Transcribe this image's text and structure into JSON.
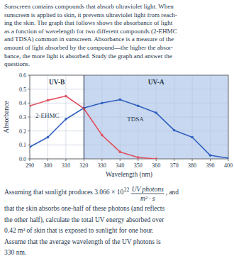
{
  "paragraph": [
    "Sunscreen contains compounds that absorb ultraviolet light. When",
    "sunscreen is applied to skin, it prevents ultraviolet light from reach-",
    "ing the skin. The graph that follows shows the absorbance of light",
    "as a function of wavelength for two different compounds (2-EHMC",
    "and TDSA) common in sunscreen. Absorbance is a measure of the",
    "amount of light absorbed by the compound—the higher the absor-",
    "bance, the more light is absorbed. Study the graph and answer the",
    "questions."
  ],
  "chart_data": {
    "type": "line",
    "x_label": "Wavelength (nm)",
    "y_label": "Absorbance",
    "xlim": [
      290,
      400
    ],
    "ylim": [
      0,
      0.6
    ],
    "xticks": [
      290,
      300,
      310,
      320,
      330,
      340,
      350,
      360,
      370,
      380,
      390,
      400
    ],
    "yticks": [
      {
        "value": 0,
        "label": "0.0"
      },
      0.1,
      0.2,
      0.3,
      0.4,
      0.5,
      0.6
    ],
    "grid": true,
    "regions": [
      {
        "label": "UV-B",
        "x": [
          290,
          320
        ]
      },
      {
        "label": "UV-A",
        "x": [
          320,
          400
        ],
        "color": "#c8d8f0"
      }
    ],
    "series": [
      {
        "name": "TDSA",
        "color": "#3060c0",
        "marker": "circle",
        "x": [
          290,
          300,
          310,
          320,
          330,
          340,
          350,
          360,
          370,
          380,
          390,
          400
        ],
        "values": [
          0.085,
          0.155,
          0.285,
          0.365,
          0.4,
          0.425,
          0.38,
          0.33,
          0.205,
          0.155,
          0.025,
          0.005
        ]
      },
      {
        "name": "2-EHMC",
        "color": "#e05060",
        "marker": "circle",
        "x": [
          290,
          300,
          310,
          320,
          330,
          340,
          350,
          360
        ],
        "values": [
          0.38,
          0.42,
          0.45,
          0.36,
          0.17,
          0.05,
          0.01,
          0.0
        ]
      }
    ]
  },
  "question": {
    "text_before": "Assuming that sunlight produces 3.066 × 10",
    "exponent": "22",
    "unit_numerator": "UV photons",
    "unit_denominator": "m² · s",
    "text_after": ", and",
    "lines": [
      "that the skin absorbs one-half of these photons (and reflects",
      "the other half), calculate the total UV energy absorbed over",
      "0.42 m² of skin that is exposed to sunlight for one hour.",
      "Assume that the average wavelength of the UV photons is",
      "330 nm."
    ]
  }
}
